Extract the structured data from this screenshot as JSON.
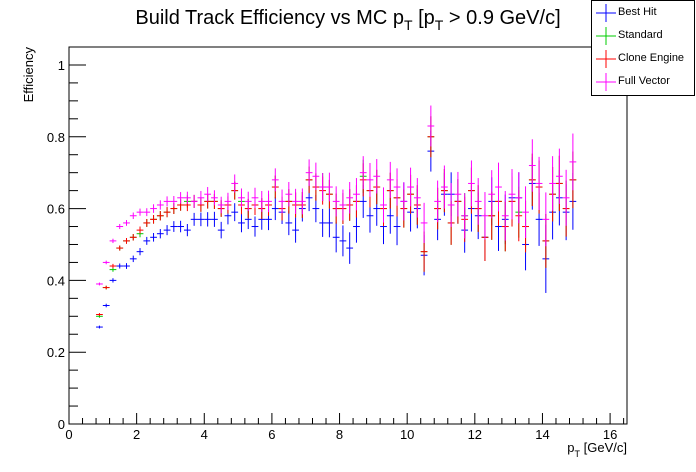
{
  "chart_data": {
    "type": "scatter",
    "title": "Build Track Efficiency vs MC p_T [p_T > 0.9 GeV/c]",
    "title_parts": {
      "main": "Build Track Efficiency vs MC p",
      "sub1": "T",
      "mid": " [p",
      "sub2": "T",
      "end": " > 0.9 GeV/c]"
    },
    "xlabel": "p_T [GeV/c]",
    "xlabel_parts": {
      "main": "p",
      "sub": "T",
      "end": " [GeV/c]"
    },
    "ylabel": "Efficiency",
    "xlim": [
      0,
      16.5
    ],
    "ylim": [
      0,
      1.05
    ],
    "xticks": [
      "0",
      "2",
      "4",
      "6",
      "8",
      "10",
      "12",
      "14",
      "16"
    ],
    "yticks": [
      "0",
      "0.2",
      "0.4",
      "0.6",
      "0.8",
      "1"
    ],
    "legend_position": "top-right",
    "grid": false,
    "series": [
      {
        "name": "Best Hit",
        "color": "#0000ff",
        "x": [
          0.9,
          1.1,
          1.3,
          1.5,
          1.7,
          1.9,
          2.1,
          2.3,
          2.5,
          2.7,
          2.9,
          3.1,
          3.3,
          3.5,
          3.7,
          3.9,
          4.1,
          4.3,
          4.5,
          4.7,
          4.9,
          5.1,
          5.3,
          5.5,
          5.7,
          5.9,
          6.1,
          6.3,
          6.5,
          6.7,
          6.9,
          7.1,
          7.3,
          7.5,
          7.7,
          7.9,
          8.1,
          8.3,
          8.5,
          8.7,
          8.9,
          9.1,
          9.3,
          9.5,
          9.7,
          9.9,
          10.1,
          10.3,
          10.5,
          10.7,
          10.9,
          11.1,
          11.3,
          11.5,
          11.7,
          11.9,
          12.1,
          12.3,
          12.5,
          12.7,
          12.9,
          13.1,
          13.3,
          13.5,
          13.7,
          13.9,
          14.1,
          14.3,
          14.5,
          14.7,
          14.9
        ],
        "y": [
          0.27,
          0.33,
          0.4,
          0.44,
          0.44,
          0.46,
          0.48,
          0.51,
          0.52,
          0.53,
          0.54,
          0.55,
          0.55,
          0.54,
          0.57,
          0.57,
          0.57,
          0.57,
          0.54,
          0.58,
          0.59,
          0.56,
          0.57,
          0.55,
          0.57,
          0.57,
          0.6,
          0.59,
          0.56,
          0.54,
          0.6,
          0.63,
          0.6,
          0.56,
          0.56,
          0.52,
          0.51,
          0.49,
          0.55,
          0.62,
          0.58,
          0.6,
          0.55,
          0.58,
          0.55,
          0.62,
          0.59,
          0.6,
          0.47,
          0.76,
          0.57,
          0.64,
          0.64,
          0.62,
          0.54,
          0.6,
          0.58,
          0.52,
          0.62,
          0.55,
          0.57,
          0.63,
          0.63,
          0.5,
          0.67,
          0.57,
          0.46,
          0.59,
          0.63,
          0.59,
          0.62
        ],
        "err": [
          0.004,
          0.005,
          0.006,
          0.007,
          0.008,
          0.009,
          0.01,
          0.011,
          0.012,
          0.013,
          0.014,
          0.015,
          0.016,
          0.017,
          0.018,
          0.019,
          0.02,
          0.021,
          0.023,
          0.024,
          0.025,
          0.026,
          0.027,
          0.028,
          0.029,
          0.03,
          0.032,
          0.033,
          0.034,
          0.035,
          0.036,
          0.037,
          0.038,
          0.039,
          0.04,
          0.042,
          0.043,
          0.044,
          0.045,
          0.046,
          0.047,
          0.048,
          0.049,
          0.05,
          0.052,
          0.053,
          0.054,
          0.055,
          0.056,
          0.057,
          0.058,
          0.06,
          0.061,
          0.062,
          0.063,
          0.064,
          0.065,
          0.066,
          0.067,
          0.068,
          0.069,
          0.07,
          0.071,
          0.072,
          0.073,
          0.074,
          0.095,
          0.076,
          0.077,
          0.078,
          0.079
        ]
      },
      {
        "name": "Standard",
        "color": "#00cc00",
        "x": [
          0.9,
          1.1,
          1.3,
          1.5,
          1.7,
          1.9,
          2.1,
          2.3,
          2.5,
          2.7,
          2.9,
          3.1,
          3.3,
          3.5,
          3.7,
          3.9,
          4.1,
          4.3,
          4.5,
          4.7,
          4.9,
          5.1,
          5.3,
          5.5,
          5.7,
          5.9,
          6.1,
          6.3,
          6.5,
          6.7,
          6.9,
          7.1,
          7.3,
          7.5,
          7.7,
          7.9,
          8.1,
          8.3,
          8.5,
          8.7,
          8.9,
          9.1,
          9.3,
          9.5,
          9.7,
          9.9,
          10.1,
          10.3,
          10.5,
          10.7,
          10.9,
          11.1,
          11.3,
          11.5,
          11.7,
          11.9,
          12.1,
          12.3,
          12.5,
          12.7,
          12.9,
          13.1,
          13.3,
          13.5,
          13.7,
          13.9,
          14.1,
          14.3,
          14.5,
          14.7,
          14.9
        ],
        "y": [
          0.3,
          0.38,
          0.43,
          0.49,
          0.51,
          0.52,
          0.53,
          0.56,
          0.57,
          0.58,
          0.59,
          0.6,
          0.61,
          0.62,
          0.62,
          0.61,
          0.62,
          0.62,
          0.6,
          0.61,
          0.65,
          0.62,
          0.6,
          0.61,
          0.6,
          0.61,
          0.66,
          0.6,
          0.62,
          0.61,
          0.61,
          0.68,
          0.66,
          0.66,
          0.64,
          0.6,
          0.6,
          0.61,
          0.62,
          0.69,
          0.65,
          0.66,
          0.6,
          0.65,
          0.63,
          0.6,
          0.64,
          0.61,
          0.48,
          0.8,
          0.6,
          0.65,
          0.56,
          0.62,
          0.58,
          0.65,
          0.6,
          0.52,
          0.58,
          0.62,
          0.55,
          0.62,
          0.59,
          0.55,
          0.68,
          0.66,
          0.51,
          0.64,
          0.67,
          0.6,
          0.68
        ],
        "err": [
          0.004,
          0.005,
          0.006,
          0.007,
          0.008,
          0.009,
          0.01,
          0.011,
          0.012,
          0.013,
          0.014,
          0.015,
          0.016,
          0.017,
          0.018,
          0.019,
          0.02,
          0.021,
          0.023,
          0.024,
          0.025,
          0.026,
          0.027,
          0.028,
          0.029,
          0.03,
          0.032,
          0.033,
          0.034,
          0.035,
          0.036,
          0.037,
          0.038,
          0.039,
          0.04,
          0.042,
          0.043,
          0.044,
          0.045,
          0.046,
          0.047,
          0.048,
          0.049,
          0.05,
          0.052,
          0.053,
          0.054,
          0.055,
          0.056,
          0.057,
          0.058,
          0.06,
          0.061,
          0.062,
          0.063,
          0.064,
          0.065,
          0.066,
          0.067,
          0.068,
          0.069,
          0.07,
          0.071,
          0.072,
          0.073,
          0.074,
          0.075,
          0.076,
          0.077,
          0.078,
          0.079
        ]
      },
      {
        "name": "Clone Engine",
        "color": "#ff0000",
        "x": [
          0.9,
          1.1,
          1.3,
          1.5,
          1.7,
          1.9,
          2.1,
          2.3,
          2.5,
          2.7,
          2.9,
          3.1,
          3.3,
          3.5,
          3.7,
          3.9,
          4.1,
          4.3,
          4.5,
          4.7,
          4.9,
          5.1,
          5.3,
          5.5,
          5.7,
          5.9,
          6.1,
          6.3,
          6.5,
          6.7,
          6.9,
          7.1,
          7.3,
          7.5,
          7.7,
          7.9,
          8.1,
          8.3,
          8.5,
          8.7,
          8.9,
          9.1,
          9.3,
          9.5,
          9.7,
          9.9,
          10.1,
          10.3,
          10.5,
          10.7,
          10.9,
          11.1,
          11.3,
          11.5,
          11.7,
          11.9,
          12.1,
          12.3,
          12.5,
          12.7,
          12.9,
          13.1,
          13.3,
          13.5,
          13.7,
          13.9,
          14.1,
          14.3,
          14.5,
          14.7,
          14.9
        ],
        "y": [
          0.305,
          0.38,
          0.44,
          0.49,
          0.51,
          0.52,
          0.54,
          0.56,
          0.57,
          0.58,
          0.59,
          0.6,
          0.61,
          0.61,
          0.62,
          0.61,
          0.62,
          0.62,
          0.6,
          0.61,
          0.65,
          0.61,
          0.6,
          0.61,
          0.6,
          0.61,
          0.66,
          0.6,
          0.62,
          0.61,
          0.61,
          0.68,
          0.66,
          0.65,
          0.64,
          0.6,
          0.6,
          0.61,
          0.62,
          0.68,
          0.65,
          0.66,
          0.6,
          0.65,
          0.63,
          0.6,
          0.64,
          0.61,
          0.48,
          0.8,
          0.6,
          0.65,
          0.56,
          0.62,
          0.57,
          0.65,
          0.6,
          0.52,
          0.58,
          0.62,
          0.55,
          0.62,
          0.58,
          0.55,
          0.68,
          0.66,
          0.51,
          0.64,
          0.67,
          0.6,
          0.68
        ],
        "err": [
          0.004,
          0.005,
          0.006,
          0.007,
          0.008,
          0.009,
          0.01,
          0.011,
          0.012,
          0.013,
          0.014,
          0.015,
          0.016,
          0.017,
          0.018,
          0.019,
          0.02,
          0.021,
          0.023,
          0.024,
          0.025,
          0.026,
          0.027,
          0.028,
          0.029,
          0.03,
          0.032,
          0.033,
          0.034,
          0.035,
          0.036,
          0.037,
          0.038,
          0.039,
          0.04,
          0.042,
          0.043,
          0.044,
          0.045,
          0.046,
          0.047,
          0.048,
          0.049,
          0.05,
          0.052,
          0.053,
          0.054,
          0.055,
          0.056,
          0.057,
          0.058,
          0.06,
          0.061,
          0.062,
          0.063,
          0.064,
          0.065,
          0.066,
          0.067,
          0.068,
          0.069,
          0.07,
          0.071,
          0.072,
          0.073,
          0.074,
          0.075,
          0.076,
          0.077,
          0.078,
          0.079
        ]
      },
      {
        "name": "Full Vector",
        "color": "#ff00ff",
        "x": [
          0.9,
          1.1,
          1.3,
          1.5,
          1.7,
          1.9,
          2.1,
          2.3,
          2.5,
          2.7,
          2.9,
          3.1,
          3.3,
          3.5,
          3.7,
          3.9,
          4.1,
          4.3,
          4.5,
          4.7,
          4.9,
          5.1,
          5.3,
          5.5,
          5.7,
          5.9,
          6.1,
          6.3,
          6.5,
          6.7,
          6.9,
          7.1,
          7.3,
          7.5,
          7.7,
          7.9,
          8.1,
          8.3,
          8.5,
          8.7,
          8.9,
          9.1,
          9.3,
          9.5,
          9.7,
          9.9,
          10.1,
          10.3,
          10.5,
          10.7,
          10.9,
          11.1,
          11.3,
          11.5,
          11.7,
          11.9,
          12.1,
          12.3,
          12.5,
          12.7,
          12.9,
          13.1,
          13.3,
          13.5,
          13.7,
          13.9,
          14.1,
          14.3,
          14.5,
          14.7,
          14.9
        ],
        "y": [
          0.39,
          0.45,
          0.51,
          0.55,
          0.56,
          0.58,
          0.59,
          0.59,
          0.6,
          0.61,
          0.62,
          0.62,
          0.63,
          0.63,
          0.62,
          0.63,
          0.64,
          0.63,
          0.61,
          0.62,
          0.67,
          0.63,
          0.62,
          0.63,
          0.62,
          0.62,
          0.68,
          0.62,
          0.64,
          0.62,
          0.62,
          0.7,
          0.69,
          0.66,
          0.66,
          0.62,
          0.61,
          0.63,
          0.64,
          0.7,
          0.68,
          0.69,
          0.61,
          0.68,
          0.66,
          0.62,
          0.66,
          0.63,
          0.56,
          0.83,
          0.62,
          0.66,
          0.61,
          0.64,
          0.58,
          0.67,
          0.62,
          0.58,
          0.64,
          0.66,
          0.58,
          0.64,
          0.63,
          0.59,
          0.72,
          0.67,
          0.57,
          0.67,
          0.69,
          0.63,
          0.73
        ],
        "err": [
          0.004,
          0.005,
          0.006,
          0.007,
          0.008,
          0.009,
          0.01,
          0.011,
          0.012,
          0.013,
          0.014,
          0.015,
          0.016,
          0.017,
          0.018,
          0.019,
          0.02,
          0.021,
          0.023,
          0.024,
          0.025,
          0.026,
          0.027,
          0.028,
          0.029,
          0.03,
          0.032,
          0.033,
          0.034,
          0.035,
          0.036,
          0.037,
          0.038,
          0.039,
          0.04,
          0.042,
          0.043,
          0.044,
          0.045,
          0.046,
          0.047,
          0.048,
          0.049,
          0.05,
          0.052,
          0.053,
          0.054,
          0.055,
          0.056,
          0.057,
          0.058,
          0.06,
          0.061,
          0.062,
          0.063,
          0.064,
          0.065,
          0.066,
          0.067,
          0.068,
          0.069,
          0.07,
          0.071,
          0.072,
          0.073,
          0.074,
          0.075,
          0.076,
          0.077,
          0.078,
          0.079
        ]
      }
    ]
  }
}
